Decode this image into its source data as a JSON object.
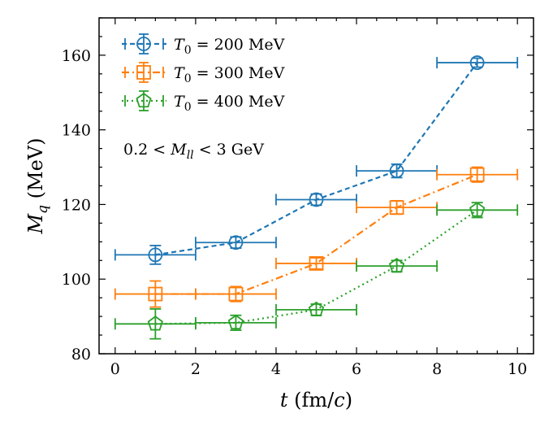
{
  "chart_data": {
    "type": "scatter",
    "xlabel": "t (fm/c)",
    "ylabel": "M_q (MeV)",
    "xlim": [
      -0.4,
      10.4
    ],
    "ylim": [
      80,
      170
    ],
    "xticks": [
      0,
      2,
      4,
      6,
      8,
      10
    ],
    "yticks": [
      80,
      100,
      120,
      140,
      160
    ],
    "legend_position": "top-left",
    "annotation": "0.2 < M_ll < 3 GeV",
    "series": [
      {
        "name": "T0 = 200 MeV",
        "color": "#1f77b4",
        "marker": "circle",
        "linestyle": "dashed",
        "x": [
          1,
          3,
          5,
          7,
          9
        ],
        "y": [
          106.5,
          109.8,
          121.3,
          129.0,
          158.0
        ],
        "xerr": [
          1,
          1,
          1,
          1,
          1
        ],
        "yerr": [
          2.5,
          1.5,
          1.5,
          1.8,
          1.2
        ]
      },
      {
        "name": "T0 = 300 MeV",
        "color": "#ff7f0e",
        "marker": "square",
        "linestyle": "dashdot",
        "x": [
          1,
          3,
          5,
          7,
          9
        ],
        "y": [
          96.0,
          96.0,
          104.2,
          119.2,
          128.0
        ],
        "xerr": [
          1,
          1,
          1,
          1,
          1
        ],
        "yerr": [
          3.5,
          2.0,
          1.5,
          1.8,
          2.0
        ]
      },
      {
        "name": "T0 = 400 MeV",
        "color": "#2ca02c",
        "marker": "pentagon",
        "linestyle": "dotted",
        "x": [
          1,
          3,
          5,
          7,
          9
        ],
        "y": [
          88.0,
          88.3,
          91.8,
          103.5,
          118.5
        ],
        "xerr": [
          1,
          1,
          1,
          1,
          1
        ],
        "yerr": [
          4.0,
          2.0,
          1.5,
          1.5,
          2.0
        ]
      }
    ]
  }
}
